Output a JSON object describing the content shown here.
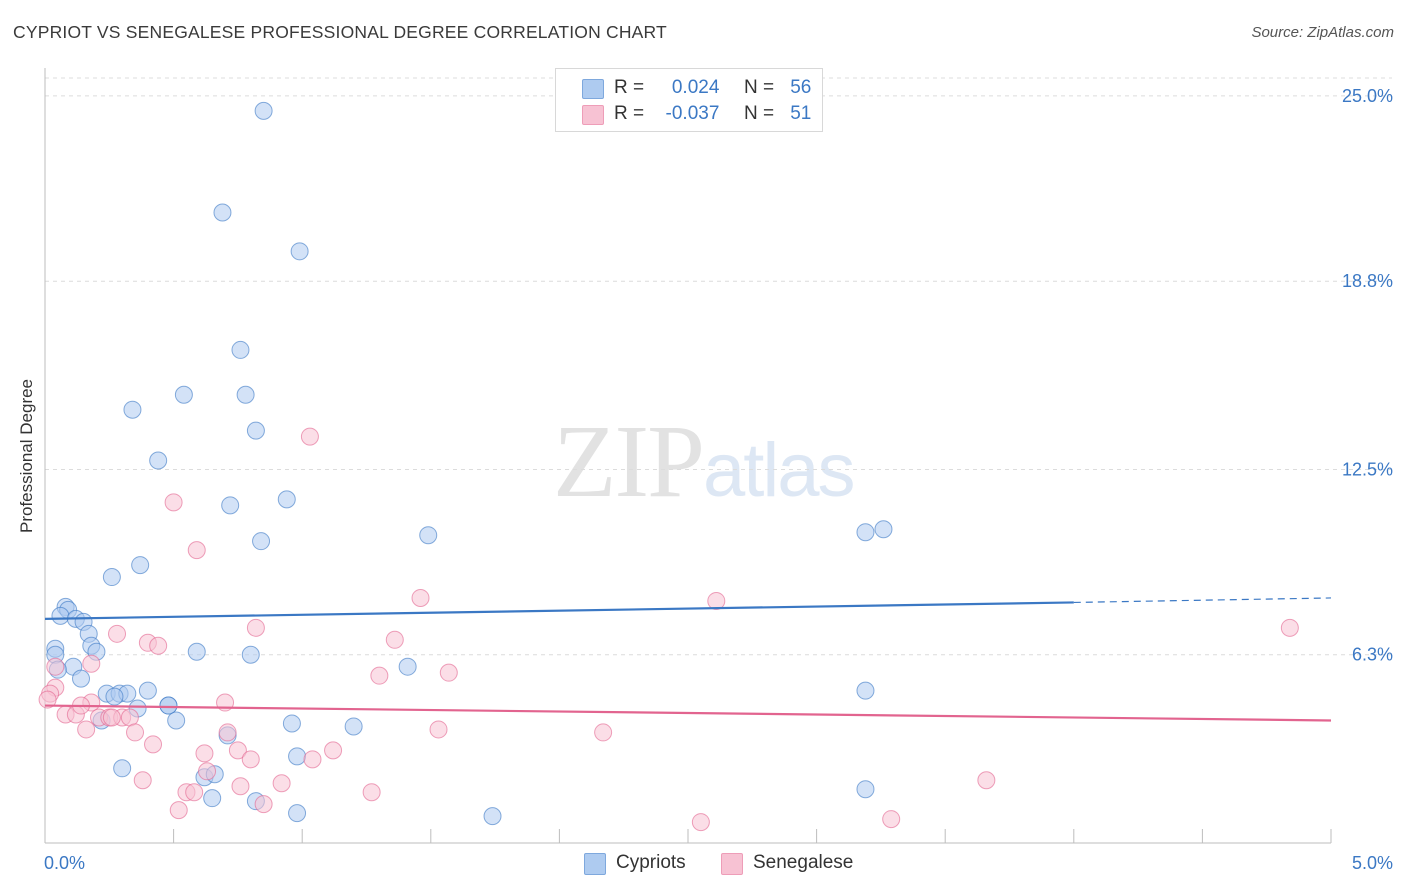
{
  "title": "CYPRIOT VS SENEGALESE PROFESSIONAL DEGREE CORRELATION CHART",
  "source": "Source: ZipAtlas.com",
  "watermark": {
    "zip": "ZIP",
    "atlas": "atlas"
  },
  "legend": {
    "rows": [
      {
        "r_label": "R =",
        "r_value": "0.024",
        "n_label": "N =",
        "n_value": "56",
        "color": "#aecbf0",
        "border": "#7ea8dd"
      },
      {
        "r_label": "R =",
        "r_value": "-0.037",
        "n_label": "N =",
        "n_value": "51",
        "color": "#f7c2d3",
        "border": "#ee9db8"
      }
    ]
  },
  "bottom_legend": [
    {
      "label": "Cypriots",
      "color": "#aecbf0",
      "border": "#7ea8dd"
    },
    {
      "label": "Senegalese",
      "color": "#f7c2d3",
      "border": "#ee9db8"
    }
  ],
  "chart_data": {
    "type": "scatter",
    "title": "CYPRIOT VS SENEGALESE PROFESSIONAL DEGREE CORRELATION CHART",
    "xlabel": "",
    "ylabel": "Professional Degree",
    "xlim": [
      0,
      5
    ],
    "ylim": [
      0,
      25.6
    ],
    "x_tick_labels": [
      "0.0%",
      "5.0%"
    ],
    "y_ticks": [
      6.3,
      12.5,
      18.8,
      25.0
    ],
    "y_tick_labels": [
      "6.3%",
      "12.5%",
      "18.8%",
      "25.0%"
    ],
    "grid": true,
    "legend_position": "top-center",
    "series": [
      {
        "name": "Cypriots",
        "color": "#3b78c4",
        "fill": "#aecbf0",
        "trend": {
          "x": [
            0,
            4.0
          ],
          "y": [
            7.5,
            8.05
          ],
          "dashed_to": [
            5.0,
            8.2
          ]
        },
        "points": [
          [
            0.85,
            24.5
          ],
          [
            0.69,
            21.1
          ],
          [
            0.99,
            19.8
          ],
          [
            0.76,
            16.5
          ],
          [
            0.54,
            15.0
          ],
          [
            0.78,
            15.0
          ],
          [
            0.34,
            14.5
          ],
          [
            0.82,
            13.8
          ],
          [
            0.44,
            12.8
          ],
          [
            0.72,
            11.3
          ],
          [
            0.94,
            11.5
          ],
          [
            1.49,
            10.3
          ],
          [
            0.84,
            10.1
          ],
          [
            0.37,
            9.3
          ],
          [
            0.26,
            8.9
          ],
          [
            0.08,
            7.9
          ],
          [
            0.09,
            7.8
          ],
          [
            0.06,
            7.6
          ],
          [
            0.12,
            7.5
          ],
          [
            0.15,
            7.4
          ],
          [
            0.17,
            7.0
          ],
          [
            0.18,
            6.6
          ],
          [
            0.2,
            6.4
          ],
          [
            0.04,
            6.5
          ],
          [
            0.04,
            6.3
          ],
          [
            0.59,
            6.4
          ],
          [
            0.8,
            6.3
          ],
          [
            0.11,
            5.9
          ],
          [
            1.41,
            5.9
          ],
          [
            0.14,
            5.5
          ],
          [
            0.24,
            5.0
          ],
          [
            0.29,
            5.0
          ],
          [
            0.32,
            5.0
          ],
          [
            0.4,
            5.1
          ],
          [
            0.27,
            4.9
          ],
          [
            0.36,
            4.5
          ],
          [
            0.48,
            4.6
          ],
          [
            0.48,
            4.6
          ],
          [
            0.51,
            4.1
          ],
          [
            0.22,
            4.1
          ],
          [
            0.96,
            4.0
          ],
          [
            1.2,
            3.9
          ],
          [
            0.71,
            3.6
          ],
          [
            3.19,
            5.1
          ],
          [
            0.98,
            2.9
          ],
          [
            0.3,
            2.5
          ],
          [
            0.62,
            2.2
          ],
          [
            0.66,
            2.3
          ],
          [
            0.82,
            1.4
          ],
          [
            0.65,
            1.5
          ],
          [
            3.19,
            10.4
          ],
          [
            3.26,
            10.5
          ],
          [
            3.19,
            1.8
          ],
          [
            1.74,
            0.9
          ],
          [
            0.98,
            1.0
          ],
          [
            0.05,
            5.8
          ]
        ]
      },
      {
        "name": "Senegalese",
        "color": "#e2648f",
        "fill": "#f7c2d3",
        "trend": {
          "x": [
            0,
            5.0
          ],
          "y": [
            4.6,
            4.1
          ]
        },
        "points": [
          [
            1.03,
            13.6
          ],
          [
            0.5,
            11.4
          ],
          [
            0.59,
            9.8
          ],
          [
            1.46,
            8.2
          ],
          [
            2.61,
            8.1
          ],
          [
            4.84,
            7.2
          ],
          [
            0.82,
            7.2
          ],
          [
            0.28,
            7.0
          ],
          [
            1.36,
            6.8
          ],
          [
            0.4,
            6.7
          ],
          [
            0.44,
            6.6
          ],
          [
            0.18,
            6.0
          ],
          [
            0.04,
            5.9
          ],
          [
            1.3,
            5.6
          ],
          [
            1.57,
            5.7
          ],
          [
            0.04,
            5.2
          ],
          [
            0.02,
            5.0
          ],
          [
            0.01,
            4.8
          ],
          [
            0.7,
            4.7
          ],
          [
            0.18,
            4.7
          ],
          [
            0.08,
            4.3
          ],
          [
            0.12,
            4.3
          ],
          [
            0.21,
            4.2
          ],
          [
            0.25,
            4.2
          ],
          [
            0.3,
            4.2
          ],
          [
            0.33,
            4.2
          ],
          [
            0.16,
            3.8
          ],
          [
            1.53,
            3.8
          ],
          [
            2.17,
            3.7
          ],
          [
            0.35,
            3.7
          ],
          [
            0.71,
            3.7
          ],
          [
            0.42,
            3.3
          ],
          [
            0.75,
            3.1
          ],
          [
            1.12,
            3.1
          ],
          [
            0.62,
            3.0
          ],
          [
            0.8,
            2.8
          ],
          [
            1.04,
            2.8
          ],
          [
            0.63,
            2.4
          ],
          [
            0.38,
            2.1
          ],
          [
            0.92,
            2.0
          ],
          [
            3.66,
            2.1
          ],
          [
            0.76,
            1.9
          ],
          [
            0.55,
            1.7
          ],
          [
            0.58,
            1.7
          ],
          [
            1.27,
            1.7
          ],
          [
            0.85,
            1.3
          ],
          [
            0.52,
            1.1
          ],
          [
            2.55,
            0.7
          ],
          [
            3.29,
            0.8
          ],
          [
            0.26,
            4.2
          ],
          [
            0.14,
            4.6
          ]
        ]
      }
    ]
  }
}
